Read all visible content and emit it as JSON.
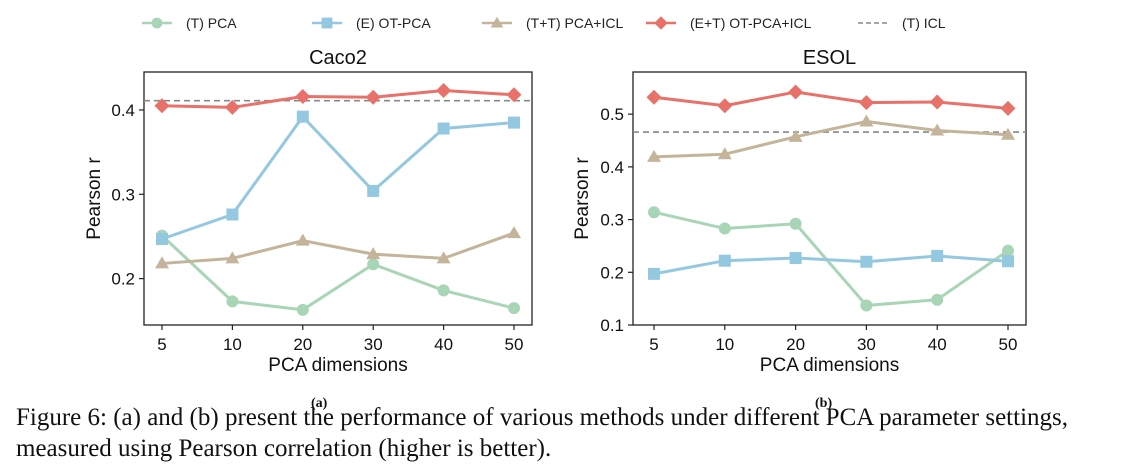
{
  "legend": [
    {
      "label": "(T) PCA",
      "color": "#a8d5b5",
      "marker": "circle",
      "style": "solid"
    },
    {
      "label": "(E) OT-PCA",
      "color": "#94c8e0",
      "marker": "square",
      "style": "solid"
    },
    {
      "label": "(T+T) PCA+ICL",
      "color": "#c4b49a",
      "marker": "triangle",
      "style": "solid"
    },
    {
      "label": "(E+T) OT-PCA+ICL",
      "color": "#e8716a",
      "marker": "diamond",
      "style": "solid"
    },
    {
      "label": "(T) ICL",
      "color": "#888888",
      "marker": "none",
      "style": "dashed"
    }
  ],
  "chart_data": [
    {
      "type": "line",
      "title": "Caco2",
      "xlabel": "PCA dimensions",
      "ylabel": "Pearson r",
      "categories": [
        "5",
        "10",
        "20",
        "30",
        "40",
        "50"
      ],
      "ylim": [
        0.145,
        0.445
      ],
      "yticks": [
        0.2,
        0.3,
        0.4
      ],
      "grid": false,
      "series": [
        {
          "name": "(T) PCA",
          "values": [
            0.251,
            0.173,
            0.163,
            0.217,
            0.186,
            0.165
          ]
        },
        {
          "name": "(E) OT-PCA",
          "values": [
            0.247,
            0.276,
            0.392,
            0.304,
            0.378,
            0.385
          ]
        },
        {
          "name": "(T+T) PCA+ICL",
          "values": [
            0.218,
            0.224,
            0.245,
            0.229,
            0.224,
            0.254
          ]
        },
        {
          "name": "(E+T) OT-PCA+ICL",
          "values": [
            0.405,
            0.403,
            0.416,
            0.415,
            0.423,
            0.418
          ]
        }
      ],
      "reference_line": {
        "name": "(T) ICL",
        "value": 0.411
      }
    },
    {
      "type": "line",
      "title": "ESOL",
      "xlabel": "PCA dimensions",
      "ylabel": "Pearson r",
      "categories": [
        "5",
        "10",
        "20",
        "30",
        "40",
        "50"
      ],
      "ylim": [
        0.1,
        0.58
      ],
      "yticks": [
        0.1,
        0.2,
        0.3,
        0.4,
        0.5
      ],
      "grid": false,
      "series": [
        {
          "name": "(T) PCA",
          "values": [
            0.314,
            0.283,
            0.292,
            0.137,
            0.148,
            0.241
          ]
        },
        {
          "name": "(E) OT-PCA",
          "values": [
            0.197,
            0.222,
            0.227,
            0.22,
            0.231,
            0.221
          ]
        },
        {
          "name": "(T+T) PCA+ICL",
          "values": [
            0.419,
            0.424,
            0.457,
            0.486,
            0.469,
            0.461
          ]
        },
        {
          "name": "(E+T) OT-PCA+ICL",
          "values": [
            0.532,
            0.516,
            0.542,
            0.522,
            0.523,
            0.511
          ]
        }
      ],
      "reference_line": {
        "name": "(T) ICL",
        "value": 0.466
      }
    }
  ],
  "sublabels": {
    "a": "(a)",
    "b": "(b)"
  },
  "caption": "Figure 6: (a) and (b) present the performance of various methods under different PCA parameter settings, measured using Pearson correlation (higher is better)."
}
